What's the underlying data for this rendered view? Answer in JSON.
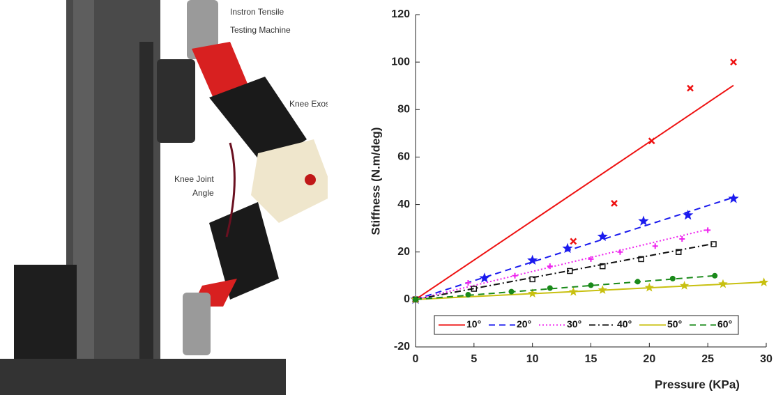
{
  "photo": {
    "labels": {
      "machine": [
        "Instron Tensile",
        "Testing Machine"
      ],
      "exosuit": "Knee Exosuit",
      "angle": [
        "Knee Joint",
        "Angle"
      ]
    }
  },
  "chart_data": {
    "type": "scatter",
    "xlabel": "Pressure (KPa)",
    "ylabel": "Stiffness (N.m/deg)",
    "xlim": [
      0,
      30
    ],
    "xticks": [
      0,
      5,
      10,
      15,
      20,
      25,
      30
    ],
    "ylim": [
      -20,
      120
    ],
    "yticks": [
      -20,
      0,
      20,
      40,
      60,
      80,
      100,
      120
    ],
    "legend": "bottom",
    "series": [
      {
        "name": "10°",
        "color": "#ee1111",
        "marker": "x",
        "dash": "solid",
        "x": [
          0,
          13.5,
          17,
          20.2,
          23.5,
          27.2
        ],
        "values": [
          0,
          24.5,
          40.5,
          66.8,
          89,
          100
        ],
        "fit_x": [
          0,
          27.2
        ],
        "fit_values": [
          0,
          90.2
        ]
      },
      {
        "name": "20°",
        "color": "#1a1aee",
        "marker": "star",
        "dash": "dash",
        "x": [
          0,
          5.9,
          10,
          13,
          16,
          19.5,
          23.3,
          27.2
        ],
        "values": [
          0,
          9,
          16.5,
          21.5,
          26.5,
          33,
          35.5,
          42.5
        ],
        "fit_x": [
          0,
          27.2
        ],
        "fit_values": [
          0,
          43
        ]
      },
      {
        "name": "30°",
        "color": "#ee22ee",
        "marker": "plus",
        "dash": "dot",
        "x": [
          0,
          4.5,
          8.5,
          11.5,
          15,
          17.5,
          20.5,
          22.8,
          25
        ],
        "values": [
          0,
          7,
          10,
          14,
          17,
          20,
          22.5,
          25.5,
          29.2
        ],
        "fit_x": [
          0,
          25
        ],
        "fit_values": [
          0,
          29.5
        ]
      },
      {
        "name": "40°",
        "color": "#111111",
        "marker": "square",
        "dash": "dashdot",
        "x": [
          0,
          5,
          10,
          13.2,
          16,
          19.3,
          22.5,
          25.5
        ],
        "values": [
          0,
          4.5,
          8.5,
          12,
          14,
          17,
          20,
          23.3
        ],
        "fit_x": [
          0,
          25.5
        ],
        "fit_values": [
          0,
          23.5
        ]
      },
      {
        "name": "50°",
        "color": "#c8c010",
        "marker": "asterisk",
        "dash": "solid",
        "x": [
          0,
          10,
          13.5,
          16,
          20,
          23,
          26.3,
          29.8
        ],
        "values": [
          0,
          2.5,
          3.2,
          4,
          5,
          5.8,
          6.5,
          7.2
        ],
        "fit_x": [
          0,
          29.8
        ],
        "fit_values": [
          0,
          7.3
        ]
      },
      {
        "name": "60°",
        "color": "#1a8a1a",
        "marker": "circle",
        "dash": "dash",
        "x": [
          0,
          4.5,
          8.2,
          11.5,
          15,
          19,
          22,
          25.6
        ],
        "values": [
          0,
          2,
          3.3,
          4.8,
          6,
          7.5,
          8.8,
          10
        ],
        "fit_x": [
          0,
          25.6
        ],
        "fit_values": [
          0,
          10
        ]
      }
    ]
  }
}
